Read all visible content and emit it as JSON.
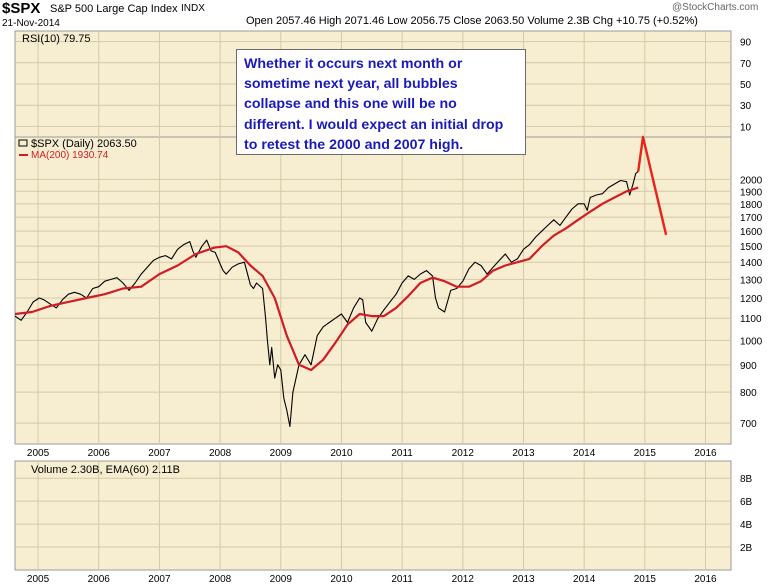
{
  "header": {
    "symbol": "$SPX",
    "name": "S&P 500 Large Cap Index",
    "exchange": "INDX",
    "date": "21-Nov-2014",
    "quote": "Open 2057.46  High 2071.46  Low 2056.75  Close 2063.50  Volume 2.3B  Chg +10.75 (+0.52%)",
    "watermark": "@StockCharts.com"
  },
  "note": {
    "lines": [
      "Whether it occurs next month or",
      "sometime next year, all bubbles",
      "collapse and this one will be no",
      "different. I would expect an initial drop",
      "to retest the 2000 and 2007 high."
    ]
  },
  "chart_data": [
    {
      "type": "line",
      "panel": "rsi",
      "title": "RSI(10) 79.75",
      "y_ticks": [
        10,
        30,
        50,
        70,
        90
      ],
      "ylim": [
        0,
        100
      ],
      "series": []
    },
    {
      "type": "line",
      "panel": "price",
      "title": "$SPX (Daily) 2063.50",
      "y_ticks": [
        700,
        800,
        900,
        1000,
        1100,
        1200,
        1300,
        1400,
        1500,
        1600,
        1700,
        1800,
        1900,
        2000
      ],
      "x_ticks": [
        "2005",
        "2006",
        "2007",
        "2008",
        "2009",
        "2010",
        "2011",
        "2012",
        "2013",
        "2014",
        "2015",
        "2016"
      ],
      "xlim": [
        2004.62,
        2016.42
      ],
      "grid": true,
      "legend_position": "top-left",
      "series": [
        {
          "name": "$SPX (Daily)",
          "color": "#000000",
          "x": [
            2004.62,
            2004.72,
            2004.82,
            2004.92,
            2005.02,
            2005.1,
            2005.2,
            2005.3,
            2005.4,
            2005.5,
            2005.6,
            2005.7,
            2005.8,
            2005.9,
            2006.0,
            2006.1,
            2006.2,
            2006.3,
            2006.4,
            2006.5,
            2006.6,
            2006.7,
            2006.8,
            2006.9,
            2007.0,
            2007.1,
            2007.2,
            2007.3,
            2007.4,
            2007.5,
            2007.55,
            2007.6,
            2007.7,
            2007.78,
            2007.85,
            2007.92,
            2008.0,
            2008.05,
            2008.1,
            2008.2,
            2008.3,
            2008.4,
            2008.5,
            2008.55,
            2008.6,
            2008.7,
            2008.75,
            2008.78,
            2008.82,
            2008.85,
            2008.9,
            2008.95,
            2009.0,
            2009.05,
            2009.1,
            2009.15,
            2009.2,
            2009.3,
            2009.4,
            2009.5,
            2009.6,
            2009.7,
            2009.8,
            2009.9,
            2010.0,
            2010.1,
            2010.2,
            2010.3,
            2010.35,
            2010.4,
            2010.5,
            2010.6,
            2010.7,
            2010.8,
            2010.9,
            2011.0,
            2011.1,
            2011.2,
            2011.3,
            2011.4,
            2011.5,
            2011.55,
            2011.6,
            2011.7,
            2011.8,
            2011.9,
            2012.0,
            2012.1,
            2012.2,
            2012.3,
            2012.4,
            2012.5,
            2012.6,
            2012.7,
            2012.8,
            2012.9,
            2013.0,
            2013.1,
            2013.2,
            2013.3,
            2013.4,
            2013.5,
            2013.6,
            2013.7,
            2013.8,
            2013.9,
            2014.0,
            2014.05,
            2014.1,
            2014.2,
            2014.3,
            2014.4,
            2014.5,
            2014.6,
            2014.7,
            2014.75,
            2014.8,
            2014.85,
            2014.89
          ],
          "values": [
            1110,
            1090,
            1130,
            1180,
            1200,
            1190,
            1170,
            1150,
            1190,
            1220,
            1230,
            1220,
            1200,
            1250,
            1260,
            1290,
            1300,
            1310,
            1280,
            1240,
            1280,
            1330,
            1370,
            1410,
            1430,
            1440,
            1420,
            1480,
            1510,
            1530,
            1470,
            1430,
            1500,
            1540,
            1470,
            1460,
            1390,
            1350,
            1330,
            1370,
            1390,
            1400,
            1270,
            1250,
            1280,
            1250,
            1100,
            1000,
            900,
            970,
            850,
            900,
            880,
            780,
            740,
            690,
            800,
            900,
            940,
            900,
            1020,
            1060,
            1080,
            1100,
            1120,
            1080,
            1150,
            1200,
            1190,
            1080,
            1040,
            1100,
            1140,
            1180,
            1220,
            1280,
            1320,
            1300,
            1330,
            1350,
            1320,
            1200,
            1150,
            1130,
            1240,
            1250,
            1290,
            1360,
            1400,
            1380,
            1330,
            1370,
            1410,
            1450,
            1400,
            1420,
            1480,
            1510,
            1560,
            1600,
            1640,
            1680,
            1640,
            1700,
            1760,
            1800,
            1800,
            1750,
            1850,
            1870,
            1880,
            1930,
            1960,
            1990,
            1980,
            1870,
            1950,
            2050,
            2070
          ]
        },
        {
          "name": "MA(200) 1930.74",
          "color": "#d01c25",
          "x": [
            2004.62,
            2004.9,
            2005.2,
            2005.5,
            2005.8,
            2006.1,
            2006.4,
            2006.7,
            2007.0,
            2007.3,
            2007.6,
            2007.9,
            2008.1,
            2008.3,
            2008.5,
            2008.7,
            2008.9,
            2009.1,
            2009.3,
            2009.5,
            2009.7,
            2009.9,
            2010.1,
            2010.3,
            2010.5,
            2010.7,
            2010.9,
            2011.1,
            2011.3,
            2011.5,
            2011.7,
            2011.9,
            2012.1,
            2012.3,
            2012.5,
            2012.7,
            2012.9,
            2013.1,
            2013.3,
            2013.5,
            2013.7,
            2013.9,
            2014.1,
            2014.3,
            2014.5,
            2014.7,
            2014.89
          ],
          "values": [
            1120,
            1130,
            1160,
            1180,
            1200,
            1220,
            1250,
            1260,
            1330,
            1380,
            1450,
            1490,
            1500,
            1460,
            1380,
            1320,
            1200,
            1020,
            900,
            880,
            920,
            990,
            1070,
            1120,
            1110,
            1110,
            1150,
            1210,
            1280,
            1310,
            1290,
            1260,
            1260,
            1290,
            1350,
            1380,
            1400,
            1420,
            1500,
            1570,
            1620,
            1680,
            1740,
            1800,
            1850,
            1900,
            1930
          ]
        },
        {
          "name": "projection",
          "color": "#e8231a",
          "x": [
            2014.89,
            2014.97,
            2015.35
          ],
          "values": [
            2070,
            2400,
            1575
          ]
        }
      ]
    },
    {
      "type": "bar",
      "panel": "volume",
      "title": "Volume 2.30B, EMA(60) 2.11B",
      "y_ticks": [
        "2B",
        "4B",
        "6B",
        "8B"
      ],
      "ylim": [
        0,
        9.5
      ],
      "series": []
    }
  ]
}
